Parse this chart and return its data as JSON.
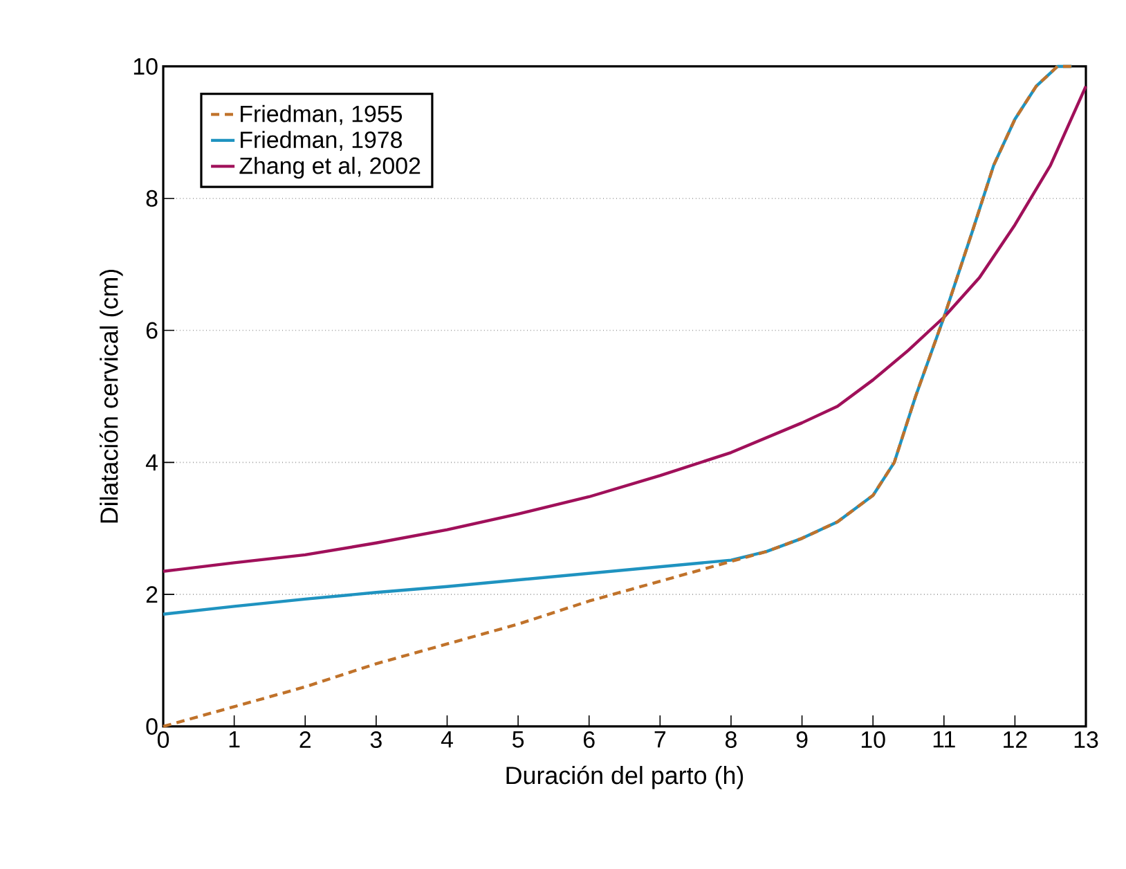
{
  "chart_data": {
    "type": "line",
    "xlabel": "Duración del parto (h)",
    "ylabel": "Dilatación cervical (cm)",
    "xlim": [
      0,
      13
    ],
    "ylim": [
      0,
      10
    ],
    "xticks": [
      0,
      1,
      2,
      3,
      4,
      5,
      6,
      7,
      8,
      9,
      10,
      11,
      12,
      13
    ],
    "yticks": [
      0,
      2,
      4,
      6,
      8,
      10
    ],
    "grid": "y",
    "legend": "top left",
    "series": [
      {
        "name": "Friedman, 1955",
        "color": "#c0722a",
        "line_style": "dashed",
        "x": [
          0,
          1,
          2,
          3,
          4,
          5,
          6,
          7,
          8,
          8.5,
          9,
          9.5,
          10,
          10.3,
          10.6,
          11,
          11.4,
          11.7,
          12,
          12.3,
          12.6,
          12.8
        ],
        "values": [
          0,
          0.3,
          0.6,
          0.95,
          1.25,
          1.55,
          1.9,
          2.2,
          2.5,
          2.65,
          2.85,
          3.1,
          3.5,
          4.0,
          5.0,
          6.2,
          7.5,
          8.5,
          9.2,
          9.7,
          10,
          10
        ]
      },
      {
        "name": "Friedman, 1978",
        "color": "#1f93c0",
        "line_style": "solid",
        "x": [
          0,
          1,
          2,
          3,
          4,
          5,
          6,
          7,
          8,
          8.5,
          9,
          9.5,
          10,
          10.3,
          10.6,
          11,
          11.4,
          11.7,
          12,
          12.3,
          12.6,
          12.8
        ],
        "values": [
          1.7,
          1.82,
          1.93,
          2.03,
          2.12,
          2.22,
          2.32,
          2.42,
          2.52,
          2.65,
          2.85,
          3.1,
          3.5,
          4.0,
          5.0,
          6.2,
          7.5,
          8.5,
          9.2,
          9.7,
          10,
          10
        ]
      },
      {
        "name": "Zhang et al, 2002",
        "color": "#a0105a",
        "line_style": "solid",
        "x": [
          0,
          1,
          2,
          3,
          4,
          5,
          6,
          7,
          8,
          9,
          9.5,
          10,
          10.5,
          11,
          11.5,
          12,
          12.5,
          13
        ],
        "values": [
          2.35,
          2.48,
          2.6,
          2.78,
          2.98,
          3.22,
          3.48,
          3.8,
          4.15,
          4.6,
          4.85,
          5.25,
          5.7,
          6.2,
          6.8,
          7.6,
          8.5,
          9.7
        ]
      }
    ]
  }
}
